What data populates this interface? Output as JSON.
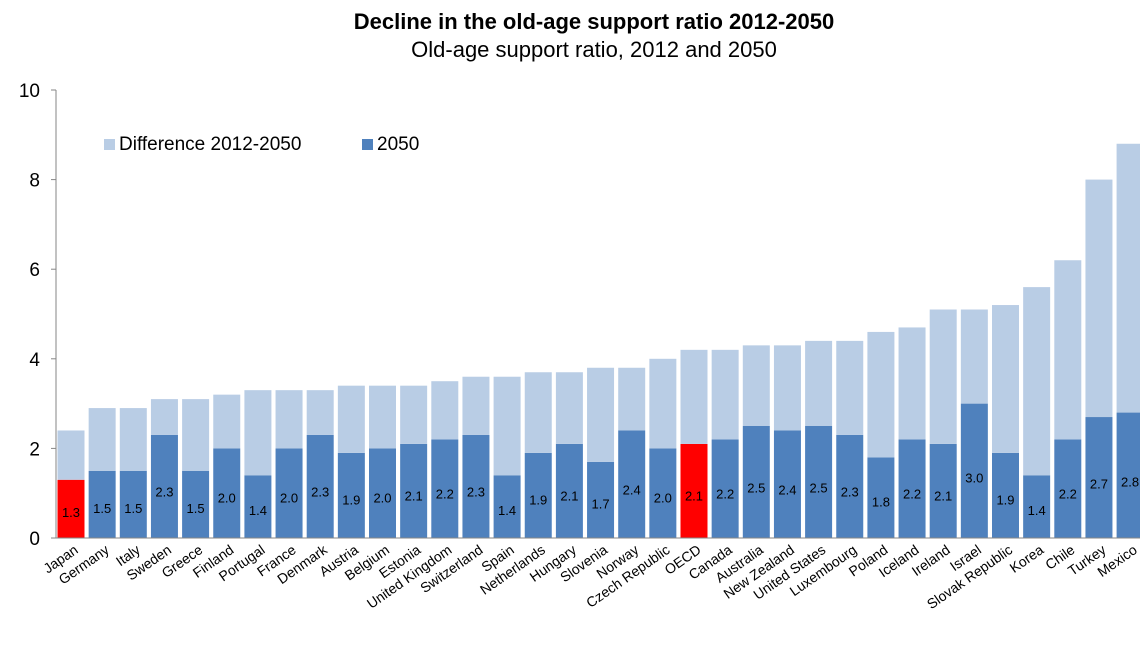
{
  "chart_data": {
    "type": "bar",
    "stacked": true,
    "title": "Decline in the old-age support ratio 2012-2050",
    "subtitle": "Old-age support ratio, 2012 and 2050",
    "xlabel": "",
    "ylabel": "",
    "ylim": [
      0,
      10
    ],
    "yticks": [
      0,
      2,
      4,
      6,
      8,
      10
    ],
    "grid": false,
    "legend_position": "top-left",
    "categories": [
      "Japan",
      "Germany",
      "Italy",
      "Sweden",
      "Greece",
      "Finland",
      "Portugal",
      "France",
      "Denmark",
      "Austria",
      "Belgium",
      "Estonia",
      "United Kingdom",
      "Switzerland",
      "Spain",
      "Netherlands",
      "Hungary",
      "Slovenia",
      "Norway",
      "Czech Republic",
      "OECD",
      "Canada",
      "Australia",
      "New Zealand",
      "United States",
      "Luxembourg",
      "Poland",
      "Iceland",
      "Ireland",
      "Israel",
      "Slovak Republic",
      "Korea",
      "Chile",
      "Turkey",
      "Mexico"
    ],
    "series": [
      {
        "name": "2050",
        "color": "#4f81bd",
        "highlight_color": "#ff0000",
        "highlight_category": "OECD",
        "values": [
          1.3,
          1.5,
          1.5,
          2.3,
          1.5,
          2.0,
          1.4,
          2.0,
          2.3,
          1.9,
          2.0,
          2.1,
          2.2,
          2.3,
          1.4,
          1.9,
          2.1,
          1.7,
          2.4,
          2.0,
          2.1,
          2.2,
          2.5,
          2.4,
          2.5,
          2.3,
          1.8,
          2.2,
          2.1,
          3.0,
          1.9,
          1.4,
          2.2,
          2.7,
          2.8
        ],
        "labels": [
          "1.3",
          "1.5",
          "1.5",
          "2.3",
          "1.5",
          "2.0",
          "1.4",
          "2.0",
          "2.3",
          "1.9",
          "2.0",
          "2.1",
          "2.2",
          "2.3",
          "1.4",
          "1.9",
          "2.1",
          "1.7",
          "2.4",
          "2.0",
          "2.1",
          "2.2",
          "2.5",
          "2.4",
          "2.5",
          "2.3",
          "1.8",
          "2.2",
          "2.1",
          "3.0",
          "1.9",
          "1.4",
          "2.2",
          "2.7",
          "2.8"
        ]
      },
      {
        "name": "Difference 2012-2050",
        "color": "#b9cde5",
        "values": [
          1.1,
          1.4,
          1.4,
          0.8,
          1.6,
          1.2,
          1.9,
          1.3,
          1.0,
          1.5,
          1.4,
          1.3,
          1.3,
          1.3,
          2.2,
          1.8,
          1.6,
          2.1,
          1.4,
          2.0,
          2.1,
          2.0,
          1.8,
          1.9,
          1.9,
          2.1,
          2.8,
          2.5,
          3.0,
          2.1,
          3.3,
          4.2,
          4.0,
          5.3,
          6.0
        ]
      }
    ],
    "japan_highlight_color": "#ff0000"
  }
}
